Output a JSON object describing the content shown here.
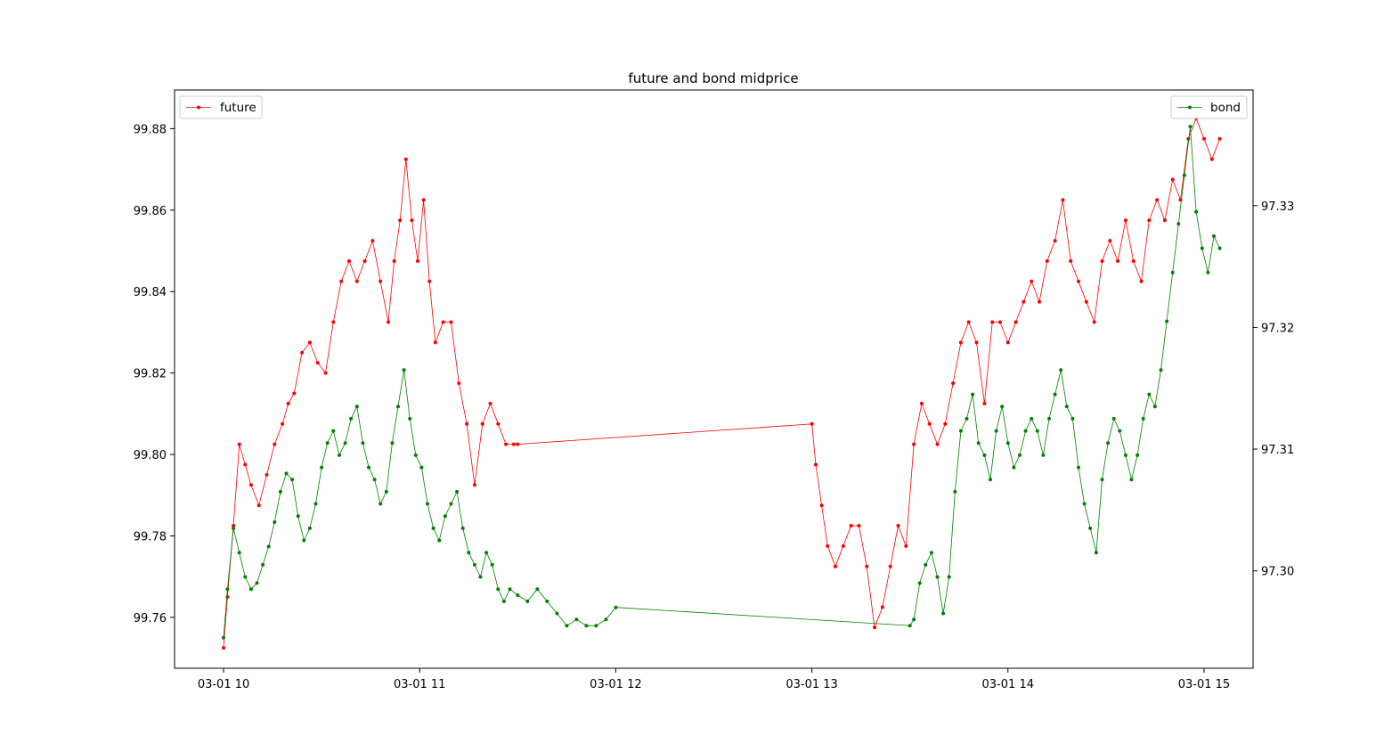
{
  "chart_data": {
    "type": "line",
    "title": "future and bond midprice",
    "xlabel": "",
    "ylabel_left": "",
    "ylabel_right": "",
    "x_ticks": [
      "03-01 10",
      "03-01 11",
      "03-01 12",
      "03-01 13",
      "03-01 14",
      "03-01 15"
    ],
    "x_range_hours": [
      9.75,
      15.25
    ],
    "y_left_ticks": [
      "99.76",
      "99.78",
      "99.80",
      "99.82",
      "99.84",
      "99.86",
      "99.88"
    ],
    "y_left_range": [
      99.7475,
      99.8895
    ],
    "y_right_ticks": [
      "97.30",
      "97.31",
      "97.32",
      "97.33"
    ],
    "y_right_range": [
      97.292,
      97.3395
    ],
    "grid": false,
    "series": [
      {
        "name": "future",
        "axis": "left",
        "color": "#ff0000",
        "legend_position": "upper left",
        "x_hours": [
          10.0,
          10.02,
          10.05,
          10.08,
          10.11,
          10.14,
          10.18,
          10.22,
          10.26,
          10.3,
          10.33,
          10.36,
          10.4,
          10.44,
          10.48,
          10.52,
          10.56,
          10.6,
          10.64,
          10.68,
          10.72,
          10.76,
          10.8,
          10.84,
          10.87,
          10.9,
          10.93,
          10.96,
          10.99,
          11.02,
          11.05,
          11.08,
          11.12,
          11.16,
          11.2,
          11.24,
          11.28,
          11.32,
          11.36,
          11.4,
          11.44,
          11.48,
          11.5,
          13.0,
          13.02,
          13.05,
          13.08,
          13.12,
          13.16,
          13.2,
          13.24,
          13.28,
          13.32,
          13.36,
          13.4,
          13.44,
          13.48,
          13.52,
          13.56,
          13.6,
          13.64,
          13.68,
          13.72,
          13.76,
          13.8,
          13.84,
          13.88,
          13.92,
          13.96,
          14.0,
          14.04,
          14.08,
          14.12,
          14.16,
          14.2,
          14.24,
          14.28,
          14.32,
          14.36,
          14.4,
          14.44,
          14.48,
          14.52,
          14.56,
          14.6,
          14.64,
          14.68,
          14.72,
          14.76,
          14.8,
          14.84,
          14.88,
          14.92,
          14.96,
          15.0,
          15.04,
          15.08
        ],
        "values": [
          99.7525,
          99.765,
          99.7825,
          99.8025,
          99.7975,
          99.7925,
          99.7875,
          99.795,
          99.8025,
          99.8075,
          99.8125,
          99.815,
          99.825,
          99.8275,
          99.8225,
          99.82,
          99.8325,
          99.8425,
          99.8475,
          99.8425,
          99.8475,
          99.8525,
          99.8425,
          99.8325,
          99.8475,
          99.8575,
          99.8725,
          99.8575,
          99.8475,
          99.8625,
          99.8425,
          99.8275,
          99.8325,
          99.8325,
          99.8175,
          99.8075,
          99.7925,
          99.8075,
          99.8125,
          99.8075,
          99.8025,
          99.8025,
          99.8025,
          99.8075,
          99.7975,
          99.7875,
          99.7775,
          99.7725,
          99.7775,
          99.7825,
          99.7825,
          99.7725,
          99.7575,
          99.7625,
          99.7725,
          99.7825,
          99.7775,
          99.8025,
          99.8125,
          99.8075,
          99.8025,
          99.8075,
          99.8175,
          99.8275,
          99.8325,
          99.8275,
          99.8125,
          99.8325,
          99.8325,
          99.8275,
          99.8325,
          99.8375,
          99.8425,
          99.8375,
          99.8475,
          99.8525,
          99.8625,
          99.8475,
          99.8425,
          99.8375,
          99.8325,
          99.8475,
          99.8525,
          99.8475,
          99.8575,
          99.8475,
          99.8425,
          99.8575,
          99.8625,
          99.8575,
          99.8675,
          99.8625,
          99.8775,
          99.8825,
          99.8775,
          99.8725,
          99.8775
        ]
      },
      {
        "name": "bond",
        "axis": "right",
        "color": "#008000",
        "legend_position": "upper right",
        "x_hours": [
          10.0,
          10.02,
          10.05,
          10.08,
          10.11,
          10.14,
          10.17,
          10.2,
          10.23,
          10.26,
          10.29,
          10.32,
          10.35,
          10.38,
          10.41,
          10.44,
          10.47,
          10.5,
          10.53,
          10.56,
          10.59,
          10.62,
          10.65,
          10.68,
          10.71,
          10.74,
          10.77,
          10.8,
          10.83,
          10.86,
          10.89,
          10.92,
          10.95,
          10.98,
          11.01,
          11.04,
          11.07,
          11.1,
          11.13,
          11.16,
          11.19,
          11.22,
          11.25,
          11.28,
          11.31,
          11.34,
          11.37,
          11.4,
          11.43,
          11.46,
          11.5,
          11.55,
          11.6,
          11.65,
          11.7,
          11.75,
          11.8,
          11.85,
          11.9,
          11.95,
          12.0,
          13.5,
          13.52,
          13.55,
          13.58,
          13.61,
          13.64,
          13.67,
          13.7,
          13.73,
          13.76,
          13.79,
          13.82,
          13.85,
          13.88,
          13.91,
          13.94,
          13.97,
          14.0,
          14.03,
          14.06,
          14.09,
          14.12,
          14.15,
          14.18,
          14.21,
          14.24,
          14.27,
          14.3,
          14.33,
          14.36,
          14.39,
          14.42,
          14.45,
          14.48,
          14.51,
          14.54,
          14.57,
          14.6,
          14.63,
          14.66,
          14.69,
          14.72,
          14.75,
          14.78,
          14.81,
          14.84,
          14.87,
          14.9,
          14.93,
          14.96,
          14.99,
          15.02,
          15.05,
          15.08
        ],
        "values": [
          97.2945,
          97.2985,
          97.3035,
          97.3015,
          97.2995,
          97.2985,
          97.299,
          97.3005,
          97.302,
          97.304,
          97.3065,
          97.308,
          97.3075,
          97.3045,
          97.3025,
          97.3035,
          97.3055,
          97.3085,
          97.3105,
          97.3115,
          97.3095,
          97.3105,
          97.3125,
          97.3135,
          97.3105,
          97.3085,
          97.3075,
          97.3055,
          97.3065,
          97.3105,
          97.3135,
          97.3165,
          97.3125,
          97.3095,
          97.3085,
          97.3055,
          97.3035,
          97.3025,
          97.3045,
          97.3055,
          97.3065,
          97.3035,
          97.3015,
          97.3005,
          97.2995,
          97.3015,
          97.3005,
          97.2985,
          97.2975,
          97.2985,
          97.298,
          97.2975,
          97.2985,
          97.2975,
          97.2965,
          97.2955,
          97.296,
          97.2955,
          97.2955,
          97.296,
          97.297,
          97.2955,
          97.296,
          97.299,
          97.3005,
          97.3015,
          97.2995,
          97.2965,
          97.2995,
          97.3065,
          97.3115,
          97.3125,
          97.3145,
          97.3105,
          97.3095,
          97.3075,
          97.3115,
          97.3135,
          97.3105,
          97.3085,
          97.3095,
          97.3115,
          97.3125,
          97.3115,
          97.3095,
          97.3125,
          97.3145,
          97.3165,
          97.3135,
          97.3125,
          97.3085,
          97.3055,
          97.3035,
          97.3015,
          97.3075,
          97.3105,
          97.3125,
          97.3115,
          97.3095,
          97.3075,
          97.3095,
          97.3125,
          97.3145,
          97.3135,
          97.3165,
          97.3205,
          97.3245,
          97.3285,
          97.3325,
          97.3365,
          97.3295,
          97.3265,
          97.3245,
          97.3275,
          97.3265
        ]
      }
    ]
  }
}
